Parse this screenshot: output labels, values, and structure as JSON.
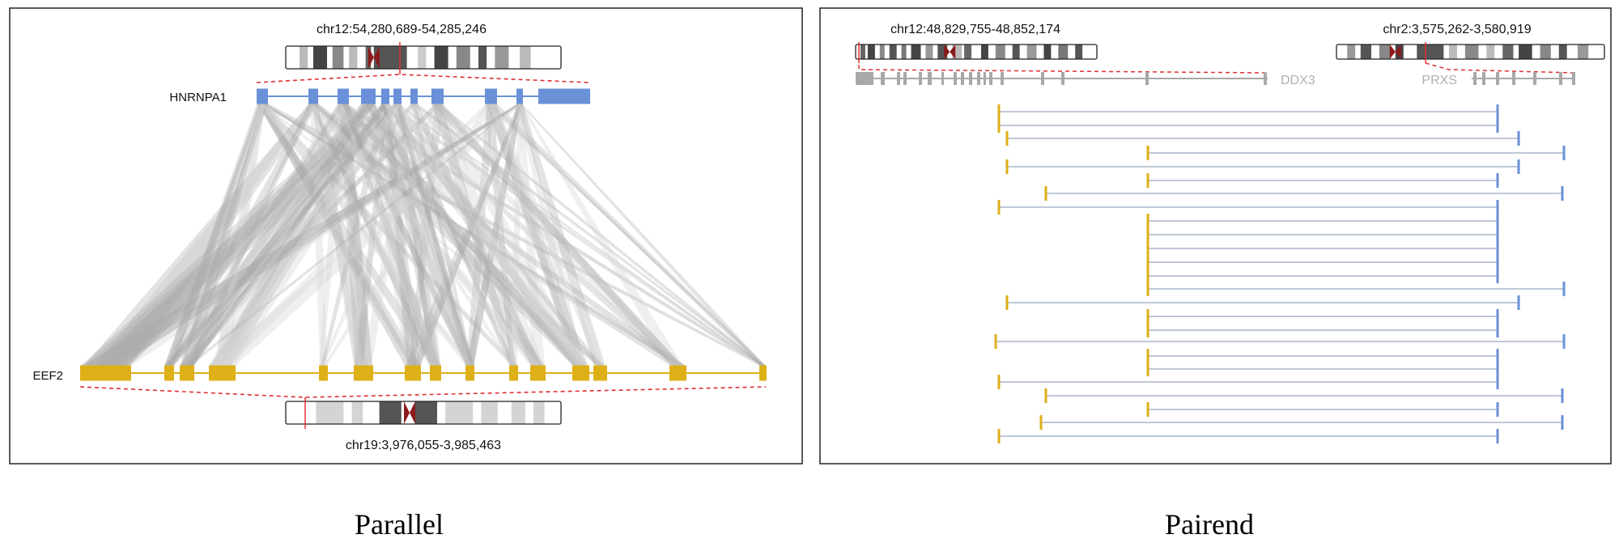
{
  "colors": {
    "gene_a": "#6a91d8",
    "gene_b": "#ddb018",
    "link": "#a8a8a8",
    "link_light": "#d4d4d4",
    "zoom": "#e03030",
    "muted_gene": "#a8a8a8",
    "centromere": "#8b1a1a",
    "read_line": "#aab6c8"
  },
  "parallel": {
    "caption": "Parallel",
    "top_locus": "chr12:54,280,689-54,285,246",
    "top_gene": "HNRNPA1",
    "bottom_locus": "chr19:3,976,055-3,985,463",
    "bottom_gene": "EEF2"
  },
  "pairend": {
    "caption": "Pairend",
    "left_locus": "chr12:48,829,755-48,852,174",
    "right_locus": "chr2:3,575,262-3,580,919",
    "left_gene": "DDX3",
    "right_gene": "PRXS"
  }
}
